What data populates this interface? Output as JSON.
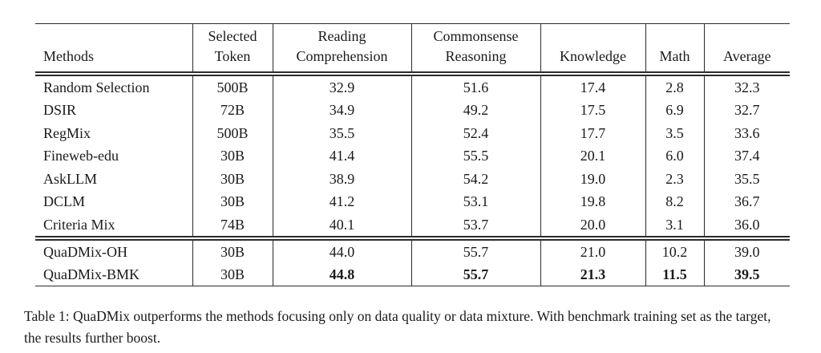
{
  "caption": "Table 1: QuaDMix outperforms the methods focusing only on data quality or data mixture. With benchmark training set as the target, the results further boost.",
  "colors": {
    "background": "#ffffff",
    "text": "#1a1a1a",
    "rule": "#2b2b2b"
  },
  "table": {
    "headers": [
      {
        "id": "methods",
        "lines": [
          "Methods"
        ],
        "align": "left"
      },
      {
        "id": "selected-token",
        "lines": [
          "Selected",
          "Token"
        ],
        "align": "center"
      },
      {
        "id": "reading-comprehension",
        "lines": [
          "Reading",
          "Comprehension"
        ],
        "align": "center"
      },
      {
        "id": "commonsense-reasoning",
        "lines": [
          "Commonsense",
          "Reasoning"
        ],
        "align": "center"
      },
      {
        "id": "knowledge",
        "lines": [
          "Knowledge"
        ],
        "align": "center"
      },
      {
        "id": "math",
        "lines": [
          "Math"
        ],
        "align": "center"
      },
      {
        "id": "average",
        "lines": [
          "Average"
        ],
        "align": "center"
      }
    ],
    "groups": [
      {
        "rows": [
          {
            "method": "Random Selection",
            "selected_token": "500B",
            "scores": [
              "32.9",
              "51.6",
              "17.4",
              "2.8",
              "32.3"
            ],
            "bold_scores": false
          },
          {
            "method": "DSIR",
            "selected_token": "72B",
            "scores": [
              "34.9",
              "49.2",
              "17.5",
              "6.9",
              "32.7"
            ],
            "bold_scores": false
          },
          {
            "method": "RegMix",
            "selected_token": "500B",
            "scores": [
              "35.5",
              "52.4",
              "17.7",
              "3.5",
              "33.6"
            ],
            "bold_scores": false
          },
          {
            "method": "Fineweb-edu",
            "selected_token": "30B",
            "scores": [
              "41.4",
              "55.5",
              "20.1",
              "6.0",
              "37.4"
            ],
            "bold_scores": false
          },
          {
            "method": "AskLLM",
            "selected_token": "30B",
            "scores": [
              "38.9",
              "54.2",
              "19.0",
              "2.3",
              "35.5"
            ],
            "bold_scores": false
          },
          {
            "method": "DCLM",
            "selected_token": "30B",
            "scores": [
              "41.2",
              "53.1",
              "19.8",
              "8.2",
              "36.7"
            ],
            "bold_scores": false
          },
          {
            "method": "Criteria Mix",
            "selected_token": "74B",
            "scores": [
              "40.1",
              "53.7",
              "20.0",
              "3.1",
              "36.0"
            ],
            "bold_scores": false
          }
        ]
      },
      {
        "rows": [
          {
            "method": "QuaDMix-OH",
            "selected_token": "30B",
            "scores": [
              "44.0",
              "55.7",
              "21.0",
              "10.2",
              "39.0"
            ],
            "bold_scores": false
          },
          {
            "method": "QuaDMix-BMK",
            "selected_token": "30B",
            "scores": [
              "44.8",
              "55.7",
              "21.3",
              "11.5",
              "39.5"
            ],
            "bold_scores": true
          }
        ]
      }
    ]
  }
}
